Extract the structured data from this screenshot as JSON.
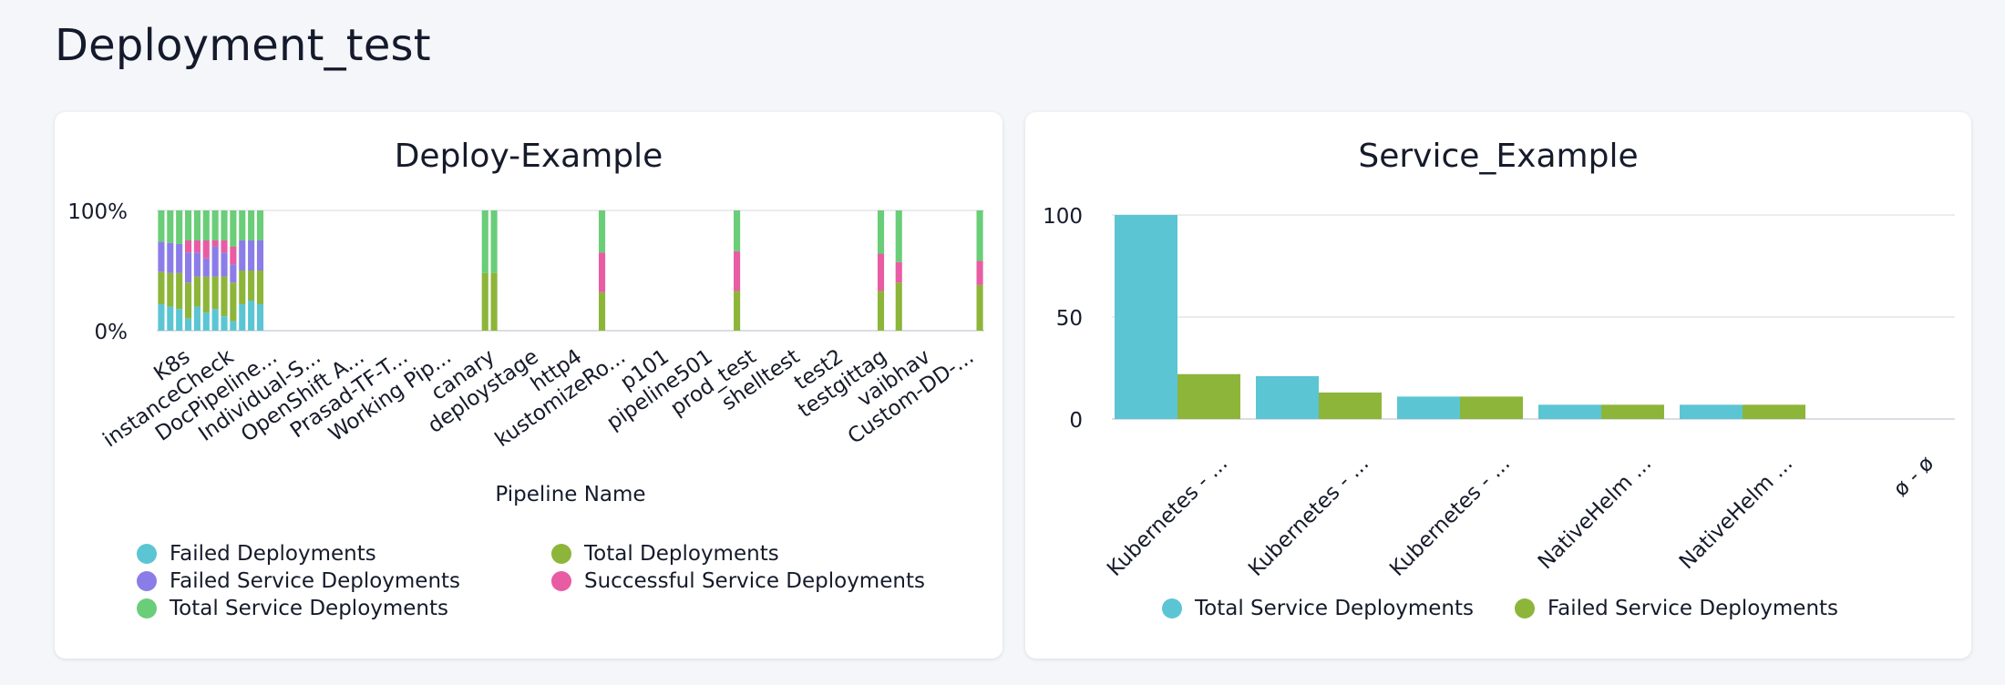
{
  "page": {
    "title": "Deployment_test"
  },
  "colors": {
    "cyan": "#5bc5d4",
    "olive": "#8db53a",
    "purple": "#8b7de8",
    "pink": "#e85ca3",
    "green": "#6acd78",
    "grid": "#e3e5ea",
    "axis": "#cfd2d8"
  },
  "chart_data": [
    {
      "type": "bar",
      "stacked": "percent",
      "title": "Deploy-Example",
      "xlabel": "Pipeline Name",
      "ylabel": "",
      "y_ticks": [
        "100%",
        "0%"
      ],
      "tick_labels": [
        "K8s",
        "instanceCheck",
        "DocPipeline...",
        "Individual-S...",
        "OpenShift A...",
        "Prasad-TF-T...",
        "Working Pip...",
        "canary",
        "deploystage",
        "http4",
        "kustomizeRo...",
        "p101",
        "pipeline501",
        "prod_test",
        "shelltest",
        "test2",
        "testgittag",
        "vaibhav",
        "Custom-DD-..."
      ],
      "legend": {
        "placement": "bottom",
        "entries": [
          {
            "label": "Failed Deployments",
            "color": "#5bc5d4"
          },
          {
            "label": "Total Deployments",
            "color": "#8db53a"
          },
          {
            "label": "Failed Service Deployments",
            "color": "#8b7de8"
          },
          {
            "label": "Successful Service Deployments",
            "color": "#e85ca3"
          },
          {
            "label": "Total Service Deployments",
            "color": "#6acd78"
          }
        ]
      },
      "bar_slots": 80,
      "bars": [
        {
          "slot": 0,
          "shares": [
            0.22,
            0.27,
            0.25,
            0,
            0.26
          ]
        },
        {
          "slot": 1,
          "shares": [
            0.2,
            0.28,
            0.25,
            0,
            0.27
          ]
        },
        {
          "slot": 2,
          "shares": [
            0.18,
            0.3,
            0.24,
            0,
            0.28
          ]
        },
        {
          "slot": 3,
          "shares": [
            0.1,
            0.3,
            0.25,
            0.1,
            0.25
          ]
        },
        {
          "slot": 4,
          "shares": [
            0.2,
            0.25,
            0.2,
            0.1,
            0.25
          ]
        },
        {
          "slot": 5,
          "shares": [
            0.15,
            0.3,
            0.15,
            0.15,
            0.25
          ]
        },
        {
          "slot": 6,
          "shares": [
            0.18,
            0.27,
            0.25,
            0.05,
            0.25
          ]
        },
        {
          "slot": 7,
          "shares": [
            0.12,
            0.33,
            0.2,
            0.1,
            0.25
          ]
        },
        {
          "slot": 8,
          "shares": [
            0.08,
            0.32,
            0.15,
            0.15,
            0.3
          ]
        },
        {
          "slot": 9,
          "shares": [
            0.22,
            0.28,
            0.25,
            0,
            0.25
          ]
        },
        {
          "slot": 10,
          "shares": [
            0.25,
            0.25,
            0.25,
            0,
            0.25
          ]
        },
        {
          "slot": 11,
          "shares": [
            0.22,
            0.28,
            0.25,
            0,
            0.25
          ]
        },
        {
          "slot": 36,
          "shares": [
            0,
            0.48,
            0,
            0,
            0.52
          ]
        },
        {
          "slot": 37,
          "shares": [
            0,
            0.48,
            0,
            0,
            0.52
          ]
        },
        {
          "slot": 49,
          "shares": [
            0,
            0.32,
            0,
            0.33,
            0.35
          ]
        },
        {
          "slot": 64,
          "shares": [
            0,
            0.33,
            0,
            0.33,
            0.34
          ]
        },
        {
          "slot": 80,
          "shares": [
            0,
            0.33,
            0,
            0.31,
            0.36
          ]
        },
        {
          "slot": 82,
          "shares": [
            0,
            0.4,
            0,
            0.17,
            0.43
          ]
        },
        {
          "slot": 91,
          "shares": [
            0,
            0.38,
            0,
            0.2,
            0.42
          ]
        }
      ]
    },
    {
      "type": "bar",
      "title": "Service_Example",
      "xlabel": "",
      "ylabel": "",
      "ylim": [
        0,
        100
      ],
      "y_ticks": [
        0,
        50,
        100
      ],
      "categories": [
        "Kubernetes - ...",
        "Kubernetes - ...",
        "Kubernetes - ...",
        "NativeHelm ...",
        "NativeHelm ...",
        "ø - ø"
      ],
      "series": [
        {
          "name": "Total Service Deployments",
          "color": "#5bc5d4",
          "values": [
            100,
            21,
            11,
            7,
            7,
            0
          ]
        },
        {
          "name": "Failed Service Deployments",
          "color": "#8db53a",
          "values": [
            22,
            13,
            11,
            7,
            7,
            0
          ]
        }
      ],
      "legend": {
        "placement": "bottom"
      }
    }
  ]
}
